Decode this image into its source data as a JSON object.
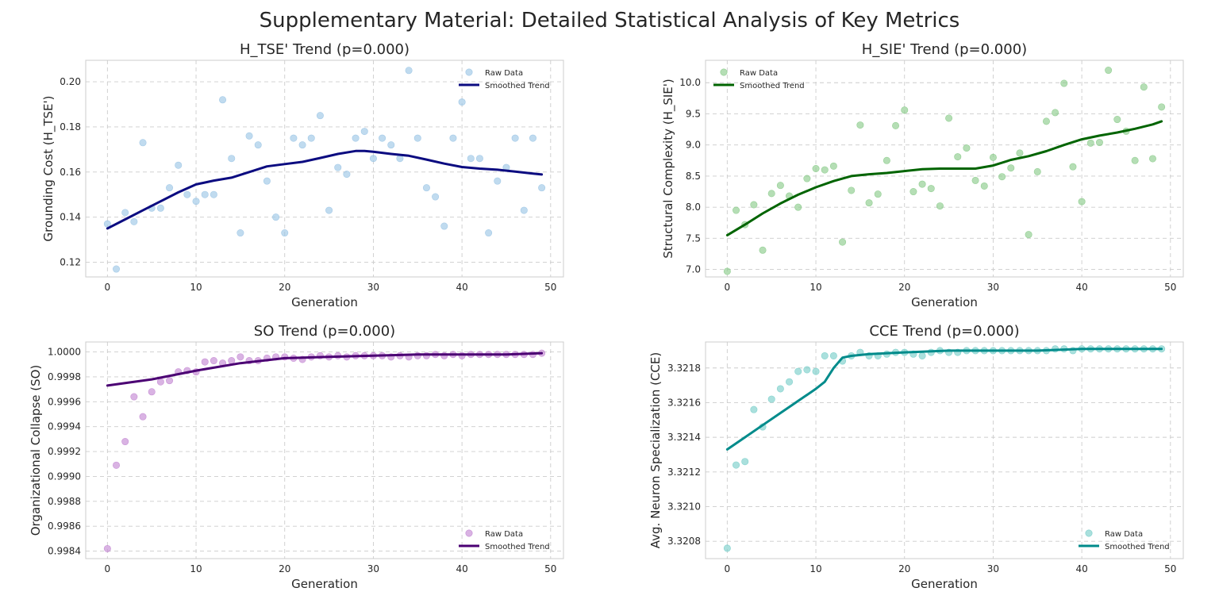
{
  "suptitle": "Supplementary Material: Detailed Statistical Analysis of Key Metrics",
  "chart_data": [
    {
      "type": "scatter",
      "title": "H_TSE' Trend (p=0.000)",
      "xlabel": "Generation",
      "ylabel": "Grounding Cost (H_TSE')",
      "xlim": [
        -2.45,
        51.45
      ],
      "ylim": [
        0.1135,
        0.2095
      ],
      "xticks": [
        "0",
        "10",
        "20",
        "30",
        "40",
        "50"
      ],
      "xtick_values": [
        0,
        10,
        20,
        30,
        40,
        50
      ],
      "yticks": [
        "0.12",
        "0.14",
        "0.16",
        "0.18",
        "0.20"
      ],
      "ytick_values": [
        0.12,
        0.14,
        0.16,
        0.18,
        0.2
      ],
      "grid": true,
      "legend_position": "top-right",
      "legend": [
        "Raw Data",
        "Smoothed Trend"
      ],
      "point_color": "#9ec7e6",
      "line_color": "#0b0b80",
      "raw_x": [
        0,
        1,
        2,
        3,
        4,
        5,
        6,
        7,
        8,
        9,
        10,
        11,
        12,
        13,
        14,
        15,
        16,
        17,
        18,
        19,
        20,
        21,
        22,
        23,
        24,
        25,
        26,
        27,
        28,
        29,
        30,
        31,
        32,
        33,
        34,
        35,
        36,
        37,
        38,
        39,
        40,
        41,
        42,
        43,
        44,
        45,
        46,
        47,
        48,
        49
      ],
      "raw_y": [
        0.137,
        0.117,
        0.142,
        0.138,
        0.173,
        0.144,
        0.144,
        0.153,
        0.163,
        0.15,
        0.147,
        0.15,
        0.15,
        0.192,
        0.166,
        0.133,
        0.176,
        0.172,
        0.156,
        0.14,
        0.133,
        0.175,
        0.172,
        0.175,
        0.185,
        0.143,
        0.162,
        0.159,
        0.175,
        0.178,
        0.166,
        0.175,
        0.172,
        0.166,
        0.205,
        0.175,
        0.153,
        0.149,
        0.136,
        0.175,
        0.191,
        0.166,
        0.166,
        0.133,
        0.156,
        0.162,
        0.175,
        0.143,
        0.175,
        0.153
      ],
      "trend_x": [
        0,
        2,
        4,
        6,
        8,
        10,
        12,
        14,
        16,
        18,
        20,
        22,
        24,
        26,
        28,
        29,
        30,
        32,
        34,
        36,
        38,
        40,
        42,
        44,
        46,
        48,
        49
      ],
      "trend_y": [
        0.135,
        0.139,
        0.143,
        0.147,
        0.151,
        0.1545,
        0.1562,
        0.1575,
        0.16,
        0.1625,
        0.1635,
        0.1645,
        0.1662,
        0.168,
        0.1693,
        0.1693,
        0.169,
        0.168,
        0.1672,
        0.1655,
        0.1637,
        0.1622,
        0.1615,
        0.161,
        0.1602,
        0.1593,
        0.1589
      ]
    },
    {
      "type": "scatter",
      "title": "H_SIE' Trend (p=0.000)",
      "xlabel": "Generation",
      "ylabel": "Structural Complexity (H_SIE')",
      "xlim": [
        -2.45,
        51.45
      ],
      "ylim": [
        6.88,
        10.36
      ],
      "xticks": [
        "0",
        "10",
        "20",
        "30",
        "40",
        "50"
      ],
      "xtick_values": [
        0,
        10,
        20,
        30,
        40,
        50
      ],
      "yticks": [
        "7.0",
        "7.5",
        "8.0",
        "8.5",
        "9.0",
        "9.5",
        "10.0"
      ],
      "ytick_values": [
        7.0,
        7.5,
        8.0,
        8.5,
        9.0,
        9.5,
        10.0
      ],
      "grid": true,
      "legend_position": "top-left",
      "legend": [
        "Raw Data",
        "Smoothed Trend"
      ],
      "point_color": "#8dcc8d",
      "line_color": "#006400",
      "raw_x": [
        0,
        1,
        2,
        3,
        4,
        5,
        6,
        7,
        8,
        9,
        10,
        11,
        12,
        13,
        14,
        15,
        16,
        17,
        18,
        19,
        20,
        21,
        22,
        23,
        24,
        25,
        26,
        27,
        28,
        29,
        30,
        31,
        32,
        33,
        34,
        35,
        36,
        37,
        38,
        39,
        40,
        41,
        42,
        43,
        44,
        45,
        46,
        47,
        48,
        49
      ],
      "raw_y": [
        6.97,
        7.95,
        7.72,
        8.04,
        7.31,
        8.22,
        8.35,
        8.18,
        8.0,
        8.46,
        8.62,
        8.6,
        8.66,
        7.44,
        8.27,
        9.32,
        8.07,
        8.21,
        8.75,
        9.31,
        9.56,
        8.25,
        8.37,
        8.3,
        8.02,
        9.43,
        8.81,
        8.95,
        8.43,
        8.34,
        8.8,
        8.49,
        8.63,
        8.87,
        7.56,
        8.57,
        9.38,
        9.52,
        9.99,
        8.65,
        8.09,
        9.03,
        9.04,
        10.2,
        9.41,
        9.22,
        8.75,
        9.93,
        8.78,
        9.61
      ],
      "trend_x": [
        0,
        2,
        4,
        6,
        8,
        10,
        12,
        14,
        16,
        18,
        20,
        22,
        24,
        26,
        28,
        30,
        32,
        34,
        36,
        38,
        40,
        42,
        44,
        46,
        48,
        49
      ],
      "trend_y": [
        7.55,
        7.72,
        7.9,
        8.06,
        8.2,
        8.32,
        8.42,
        8.5,
        8.53,
        8.55,
        8.58,
        8.61,
        8.62,
        8.62,
        8.62,
        8.67,
        8.76,
        8.82,
        8.9,
        9.0,
        9.09,
        9.15,
        9.2,
        9.26,
        9.33,
        9.38
      ]
    },
    {
      "type": "scatter",
      "title": "SO Trend (p=0.000)",
      "xlabel": "Generation",
      "ylabel": "Organizational Collapse (SO)",
      "xlim": [
        -2.45,
        51.45
      ],
      "ylim": [
        0.99834,
        1.00008
      ],
      "xticks": [
        "0",
        "10",
        "20",
        "30",
        "40",
        "50"
      ],
      "xtick_values": [
        0,
        10,
        20,
        30,
        40,
        50
      ],
      "yticks": [
        "0.9984",
        "0.9986",
        "0.9988",
        "0.9990",
        "0.9992",
        "0.9994",
        "0.9996",
        "0.9998",
        "1.0000"
      ],
      "ytick_values": [
        0.9984,
        0.9986,
        0.9988,
        0.999,
        0.9992,
        0.9994,
        0.9996,
        0.9998,
        1.0
      ],
      "grid": true,
      "legend_position": "bottom-right",
      "legend": [
        "Raw Data",
        "Smoothed Trend"
      ],
      "point_color": "#c58bd4",
      "line_color": "#4b0073",
      "raw_x": [
        0,
        1,
        2,
        3,
        4,
        5,
        6,
        7,
        8,
        9,
        10,
        11,
        12,
        13,
        14,
        15,
        16,
        17,
        18,
        19,
        20,
        21,
        22,
        23,
        24,
        25,
        26,
        27,
        28,
        29,
        30,
        31,
        32,
        33,
        34,
        35,
        36,
        37,
        38,
        39,
        40,
        41,
        42,
        43,
        44,
        45,
        46,
        47,
        48,
        49
      ],
      "raw_y": [
        0.99842,
        0.99909,
        0.99928,
        0.99964,
        0.99948,
        0.99968,
        0.99976,
        0.99977,
        0.99984,
        0.99985,
        0.99984,
        0.99992,
        0.99993,
        0.99991,
        0.99993,
        0.99996,
        0.99993,
        0.99993,
        0.99995,
        0.99996,
        0.99996,
        0.99995,
        0.99994,
        0.99996,
        0.99997,
        0.99996,
        0.99997,
        0.99996,
        0.99997,
        0.99997,
        0.99997,
        0.99997,
        0.99996,
        0.99997,
        0.99996,
        0.99997,
        0.99997,
        0.99998,
        0.99997,
        0.99998,
        0.99997,
        0.99998,
        0.99998,
        0.99998,
        0.99998,
        0.99998,
        0.99998,
        0.99998,
        0.99998,
        0.99999
      ],
      "trend_x": [
        0,
        5,
        10,
        15,
        20,
        25,
        30,
        35,
        40,
        45,
        49
      ],
      "trend_y": [
        0.99973,
        0.99978,
        0.99985,
        0.99991,
        0.99995,
        0.99996,
        0.99997,
        0.99998,
        0.99998,
        0.99998,
        0.99999
      ]
    },
    {
      "type": "scatter",
      "title": "CCE Trend (p=0.000)",
      "xlabel": "Generation",
      "ylabel": "Avg. Neuron Specialization (CCE)",
      "xlim": [
        -2.45,
        51.45
      ],
      "ylim": [
        3.3207,
        3.32195
      ],
      "xticks": [
        "0",
        "10",
        "20",
        "30",
        "40",
        "50"
      ],
      "xtick_values": [
        0,
        10,
        20,
        30,
        40,
        50
      ],
      "yticks": [
        "3.3208",
        "3.3210",
        "3.3212",
        "3.3214",
        "3.3216",
        "3.3218"
      ],
      "ytick_values": [
        3.3208,
        3.321,
        3.3212,
        3.3214,
        3.3216,
        3.3218
      ],
      "grid": true,
      "legend_position": "bottom-right",
      "legend": [
        "Raw Data",
        "Smoothed Trend"
      ],
      "point_color": "#7ccfcb",
      "line_color": "#008b8b",
      "raw_x": [
        0,
        1,
        2,
        3,
        4,
        5,
        6,
        7,
        8,
        9,
        10,
        11,
        12,
        13,
        14,
        15,
        16,
        17,
        18,
        19,
        20,
        21,
        22,
        23,
        24,
        25,
        26,
        27,
        28,
        29,
        30,
        31,
        32,
        33,
        34,
        35,
        36,
        37,
        38,
        39,
        40,
        41,
        42,
        43,
        44,
        45,
        46,
        47,
        48,
        49
      ],
      "raw_y": [
        3.32076,
        3.32124,
        3.32126,
        3.32156,
        3.32146,
        3.32162,
        3.32168,
        3.32172,
        3.32178,
        3.32179,
        3.32178,
        3.32187,
        3.32187,
        3.32184,
        3.32187,
        3.32189,
        3.32187,
        3.32187,
        3.32188,
        3.32189,
        3.32189,
        3.32188,
        3.32187,
        3.32189,
        3.3219,
        3.32189,
        3.32189,
        3.3219,
        3.3219,
        3.3219,
        3.3219,
        3.3219,
        3.3219,
        3.3219,
        3.3219,
        3.3219,
        3.3219,
        3.32191,
        3.32191,
        3.3219,
        3.32191,
        3.32191,
        3.32191,
        3.32191,
        3.32191,
        3.32191,
        3.32191,
        3.32191,
        3.32191,
        3.32191
      ],
      "trend_x": [
        0,
        2,
        4,
        6,
        8,
        10,
        11,
        12,
        13,
        14,
        16,
        20,
        25,
        30,
        35,
        40,
        45,
        49
      ],
      "trend_y": [
        3.32133,
        3.3214,
        3.32147,
        3.32154,
        3.32161,
        3.32168,
        3.32172,
        3.3218,
        3.32186,
        3.32187,
        3.32188,
        3.32189,
        3.3219,
        3.3219,
        3.3219,
        3.32191,
        3.32191,
        3.32191
      ]
    }
  ]
}
